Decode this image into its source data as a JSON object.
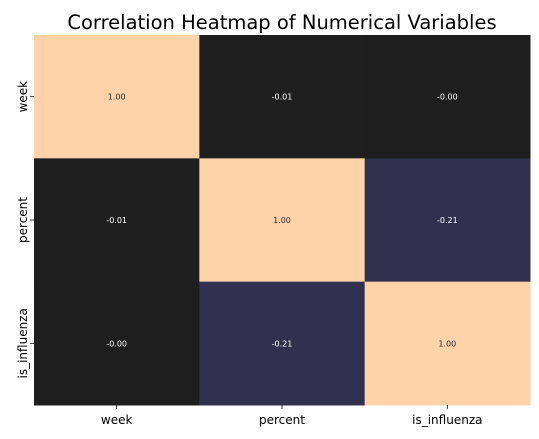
{
  "chart_data": {
    "type": "heatmap",
    "title": "Correlation Heatmap of Numerical Variables",
    "x_categories": [
      "week",
      "percent",
      "is_influenza"
    ],
    "y_categories": [
      "week",
      "percent",
      "is_influenza"
    ],
    "values": [
      [
        1.0,
        -0.01,
        -0.0
      ],
      [
        -0.01,
        1.0,
        -0.21
      ],
      [
        -0.0,
        -0.21,
        1.0
      ]
    ],
    "annotations": [
      [
        "1.00",
        "-0.01",
        "-0.00"
      ],
      [
        "-0.01",
        "1.00",
        "-0.21"
      ],
      [
        "-0.00",
        "-0.21",
        "1.00"
      ]
    ],
    "colorbar": false,
    "color_scale": {
      "low_value": -0.21,
      "high_value": 1.0,
      "colors": {
        "high": "#fed3aa",
        "negative_mid": "#31304f",
        "zero": "#1e1e1e"
      }
    },
    "annotation_colors": {
      "on_dark": "#ffffff",
      "on_light": "#262626"
    }
  }
}
